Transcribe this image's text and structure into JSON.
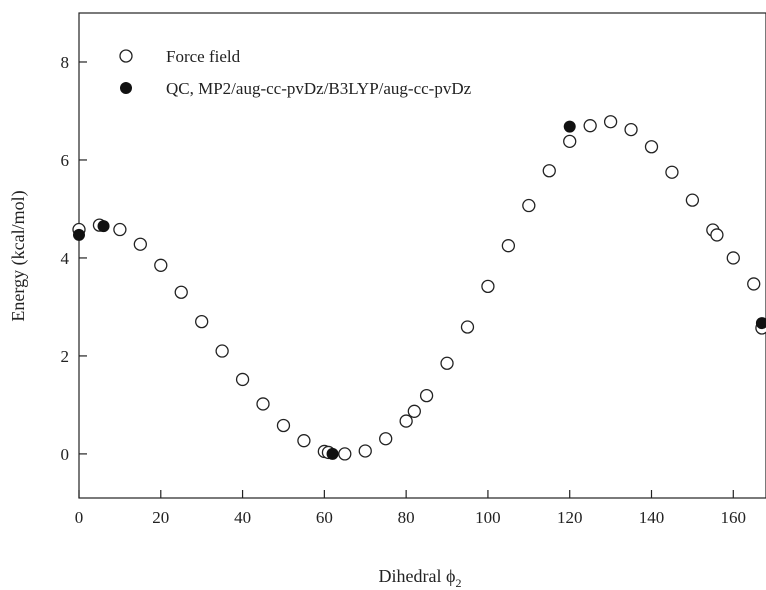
{
  "chart_data": {
    "type": "scatter",
    "title": "",
    "xlabel": "Dihedral ϕ",
    "xlabel_subscript": "2",
    "ylabel": "Energy (kcal/mol)",
    "xlim": [
      0,
      168
    ],
    "ylim": [
      -0.9,
      9.0
    ],
    "xticks": [
      0,
      20,
      40,
      60,
      80,
      100,
      120,
      140,
      160
    ],
    "yticks": [
      0,
      2,
      4,
      6,
      8
    ],
    "grid": false,
    "legend_position": "top-left",
    "series": [
      {
        "name": "Force field",
        "marker": "open-circle",
        "color": "#222222",
        "x": [
          0,
          5,
          10,
          15,
          20,
          25,
          30,
          35,
          40,
          45,
          50,
          55,
          60,
          61,
          65,
          70,
          75,
          80,
          82,
          85,
          90,
          95,
          100,
          105,
          110,
          115,
          120,
          125,
          130,
          135,
          140,
          145,
          150,
          155,
          156,
          160,
          165,
          167
        ],
        "y": [
          4.58,
          4.67,
          4.58,
          4.28,
          3.85,
          3.3,
          2.7,
          2.1,
          1.52,
          1.02,
          0.58,
          0.27,
          0.05,
          0.03,
          0.0,
          0.06,
          0.31,
          0.67,
          0.87,
          1.19,
          1.85,
          2.59,
          3.42,
          4.25,
          5.07,
          5.78,
          6.38,
          6.7,
          6.78,
          6.62,
          6.27,
          5.75,
          5.18,
          4.57,
          4.47,
          4.0,
          3.47,
          2.57
        ]
      },
      {
        "name": "QC, MP2/aug-cc-pvDz/B3LYP/aug-cc-pvDz",
        "marker": "filled-circle",
        "color": "#111111",
        "x": [
          0,
          6,
          62,
          120,
          167
        ],
        "y": [
          4.47,
          4.65,
          0.0,
          6.68,
          2.67
        ]
      }
    ]
  }
}
